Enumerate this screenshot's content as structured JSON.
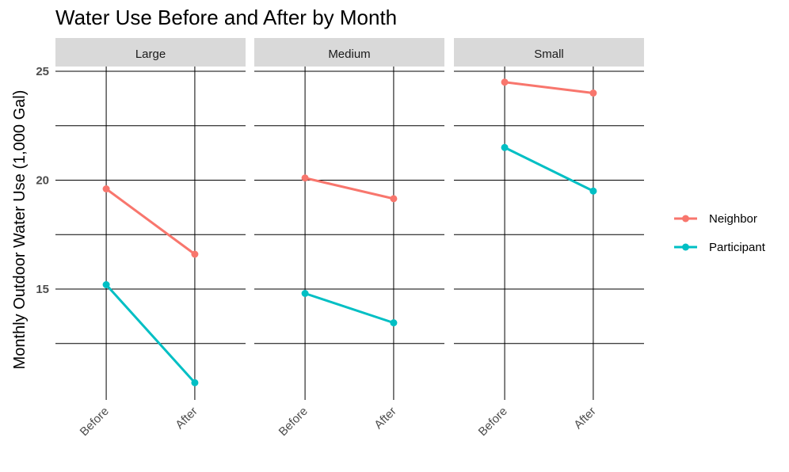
{
  "chart_data": {
    "type": "line",
    "title": "Water Use Before and After by Month",
    "xlabel": "",
    "ylabel": "Monthly Outdoor Water Use (1,000 Gal)",
    "categories": [
      "Before",
      "After"
    ],
    "y_ticks": [
      15,
      20,
      25
    ],
    "ylim": [
      10.5,
      25.2
    ],
    "grid": true,
    "legend_position": "right",
    "series_colors": {
      "Neighbor": "#F8766D",
      "Participant": "#00BFC4"
    },
    "legend": [
      {
        "name": "Neighbor",
        "color": "#F8766D"
      },
      {
        "name": "Participant",
        "color": "#00BFC4"
      }
    ],
    "panels": [
      {
        "label": "Large",
        "series": [
          {
            "name": "Neighbor",
            "values": [
              19.6,
              16.6
            ]
          },
          {
            "name": "Participant",
            "values": [
              15.2,
              10.7
            ]
          }
        ]
      },
      {
        "label": "Medium",
        "series": [
          {
            "name": "Neighbor",
            "values": [
              20.1,
              19.15
            ]
          },
          {
            "name": "Participant",
            "values": [
              14.8,
              13.45
            ]
          }
        ]
      },
      {
        "label": "Small",
        "series": [
          {
            "name": "Neighbor",
            "values": [
              24.5,
              24.0
            ]
          },
          {
            "name": "Participant",
            "values": [
              21.5,
              19.5
            ]
          }
        ]
      }
    ]
  }
}
